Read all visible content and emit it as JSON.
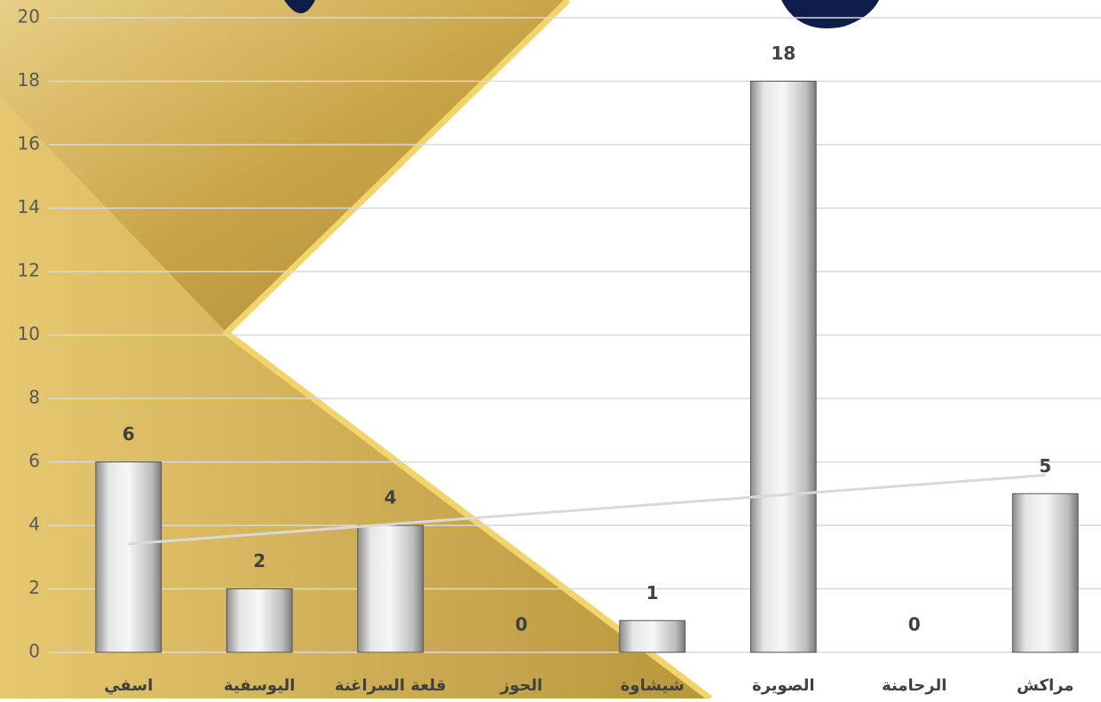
{
  "chart_data": {
    "type": "bar",
    "categories": [
      "اسفي",
      "اليوسفية",
      "قلعة السراغنة",
      "الحوز",
      "شيشاوة",
      "الصويرة",
      "الرحامنة",
      "مراكش"
    ],
    "values": [
      6,
      2,
      4,
      0,
      1,
      18,
      0,
      5
    ],
    "color": "#c8c8c8",
    "ylim": [
      0,
      20
    ],
    "yticks": [
      0,
      2,
      4,
      6,
      8,
      10,
      12,
      14,
      16,
      18,
      20
    ],
    "grid": true,
    "trendline": true
  }
}
